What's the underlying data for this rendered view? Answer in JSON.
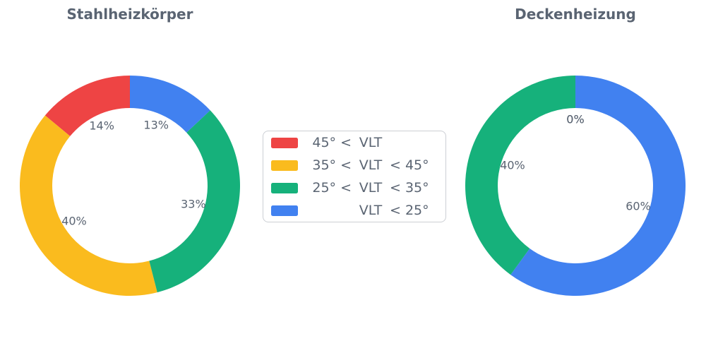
{
  "page": {
    "background": "#ffffff"
  },
  "colors": {
    "text": "#5A6472",
    "legend_border": "#CCCFD4",
    "red": "#EE4444",
    "amber": "#FABB1E",
    "green": "#16B17B",
    "blue": "#4181F0"
  },
  "chart_data": [
    {
      "type": "pie",
      "subtype": "donut",
      "title": "Stahlheizkörper",
      "categories": [
        "45° < VLT",
        "35° < VLT < 45°",
        "25° < VLT < 35°",
        "VLT < 25°"
      ],
      "values": [
        14,
        40,
        33,
        13
      ],
      "unit": "%",
      "pct_labels": [
        "14%",
        "40%",
        "33%",
        "13%"
      ],
      "colors": [
        "#EE4444",
        "#FABB1E",
        "#16B17B",
        "#4181F0"
      ],
      "color_names": [
        "red",
        "amber",
        "green",
        "blue"
      ],
      "hole_ratio": 0.705,
      "start_angle_deg": 90,
      "direction": "counterclockwise",
      "label_radius_ratio": 0.6,
      "legend_position": "center-between-charts"
    },
    {
      "type": "pie",
      "subtype": "donut",
      "title": "Deckenheizung",
      "categories": [
        "45° < VLT",
        "35° < VLT < 45°",
        "25° < VLT < 35°",
        "VLT < 25°"
      ],
      "values": [
        0,
        0,
        40,
        60
      ],
      "unit": "%",
      "pct_labels": [
        "0%",
        "0%",
        "40%",
        "60%"
      ],
      "colors": [
        "#EE4444",
        "#FABB1E",
        "#16B17B",
        "#4181F0"
      ],
      "color_names": [
        "red",
        "amber",
        "green",
        "blue"
      ],
      "hole_ratio": 0.705,
      "start_angle_deg": 90,
      "direction": "counterclockwise",
      "label_radius_ratio": 0.6,
      "legend_position": "center-between-charts"
    }
  ],
  "legend": {
    "items": [
      {
        "label": "45° < VLT",
        "parts": {
          "left": "45° <",
          "mid": "VLT",
          "right": ""
        },
        "color": "#EE4444",
        "color_name": "red"
      },
      {
        "label": "35° < VLT < 45°",
        "parts": {
          "left": "35° <",
          "mid": "VLT",
          "right": "< 45°"
        },
        "color": "#FABB1E",
        "color_name": "amber"
      },
      {
        "label": "25° < VLT < 35°",
        "parts": {
          "left": "25° <",
          "mid": "VLT",
          "right": "< 35°"
        },
        "color": "#16B17B",
        "color_name": "green"
      },
      {
        "label": "VLT < 25°",
        "parts": {
          "left": "",
          "mid": "VLT",
          "right": "< 25°"
        },
        "color": "#4181F0",
        "color_name": "blue"
      }
    ]
  }
}
